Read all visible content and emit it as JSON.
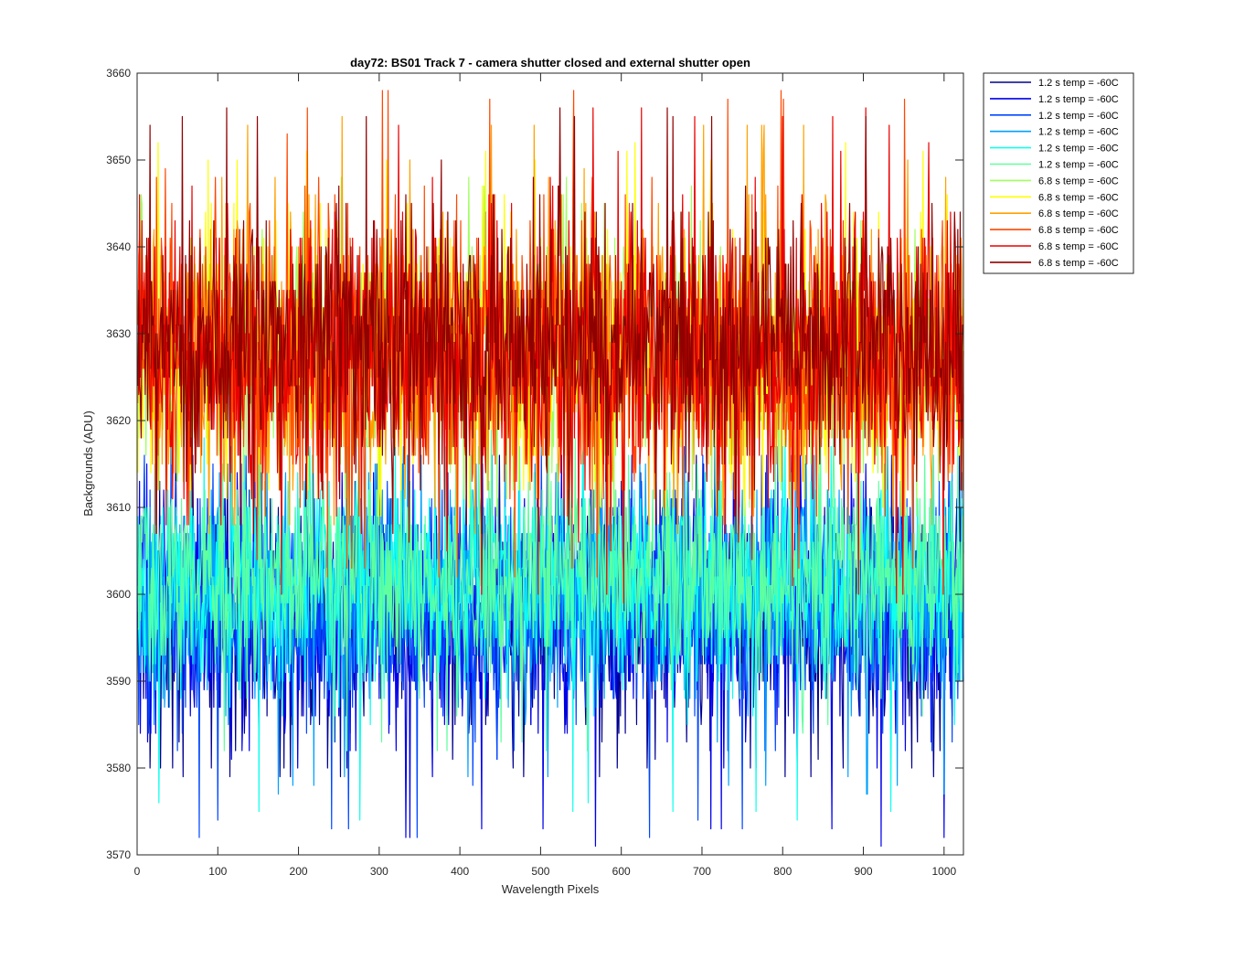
{
  "chart_data": {
    "type": "line",
    "title": "day72: BS01  Track 7 - camera shutter closed and external shutter open",
    "xlabel": "Wavelength Pixels",
    "ylabel": "Backgrounds (ADU)",
    "xlim": [
      0,
      1024
    ],
    "ylim": [
      3570,
      3660
    ],
    "xticks": [
      0,
      100,
      200,
      300,
      400,
      500,
      600,
      700,
      800,
      900,
      1000
    ],
    "yticks": [
      3570,
      3580,
      3590,
      3600,
      3610,
      3620,
      3630,
      3640,
      3650,
      3660
    ],
    "grid": false,
    "legend_position": "outside-top-right",
    "n_points": 1024,
    "series": [
      {
        "name": "1.2 s temp = -60C",
        "color": "#00008f",
        "mean": 3598,
        "noise": 7,
        "min": 3579,
        "max": 3616
      },
      {
        "name": "1.2 s temp = -60C",
        "color": "#0000ea",
        "mean": 3598,
        "noise": 7,
        "min": 3571,
        "max": 3616
      },
      {
        "name": "1.2 s temp = -60C",
        "color": "#0047ff",
        "mean": 3599,
        "noise": 7,
        "min": 3572,
        "max": 3617
      },
      {
        "name": "1.2 s temp = -60C",
        "color": "#00a0ff",
        "mean": 3600,
        "noise": 6,
        "min": 3577,
        "max": 3617
      },
      {
        "name": "1.2 s temp = -60C",
        "color": "#10ffef",
        "mean": 3601,
        "noise": 6,
        "min": 3574,
        "max": 3618
      },
      {
        "name": "1.2 s temp = -60C",
        "color": "#60ff9f",
        "mean": 3602,
        "noise": 6,
        "min": 3582,
        "max": 3619
      },
      {
        "name": "6.8 s temp = -60C",
        "color": "#a0ff5f",
        "mean": 3627,
        "noise": 7,
        "min": 3608,
        "max": 3648
      },
      {
        "name": "6.8 s temp = -60C",
        "color": "#ffff00",
        "mean": 3628,
        "noise": 7,
        "min": 3608,
        "max": 3652
      },
      {
        "name": "6.8 s temp = -60C",
        "color": "#ffa000",
        "mean": 3628,
        "noise": 8,
        "min": 3607,
        "max": 3655
      },
      {
        "name": "6.8 s temp = -60C",
        "color": "#ff4700",
        "mean": 3628,
        "noise": 8,
        "min": 3602,
        "max": 3658
      },
      {
        "name": "6.8 s temp = -60C",
        "color": "#ea0000",
        "mean": 3628,
        "noise": 8,
        "min": 3599,
        "max": 3656
      },
      {
        "name": "6.8 s temp = -60C",
        "color": "#8f0000",
        "mean": 3629,
        "noise": 7,
        "min": 3606,
        "max": 3656
      }
    ]
  }
}
